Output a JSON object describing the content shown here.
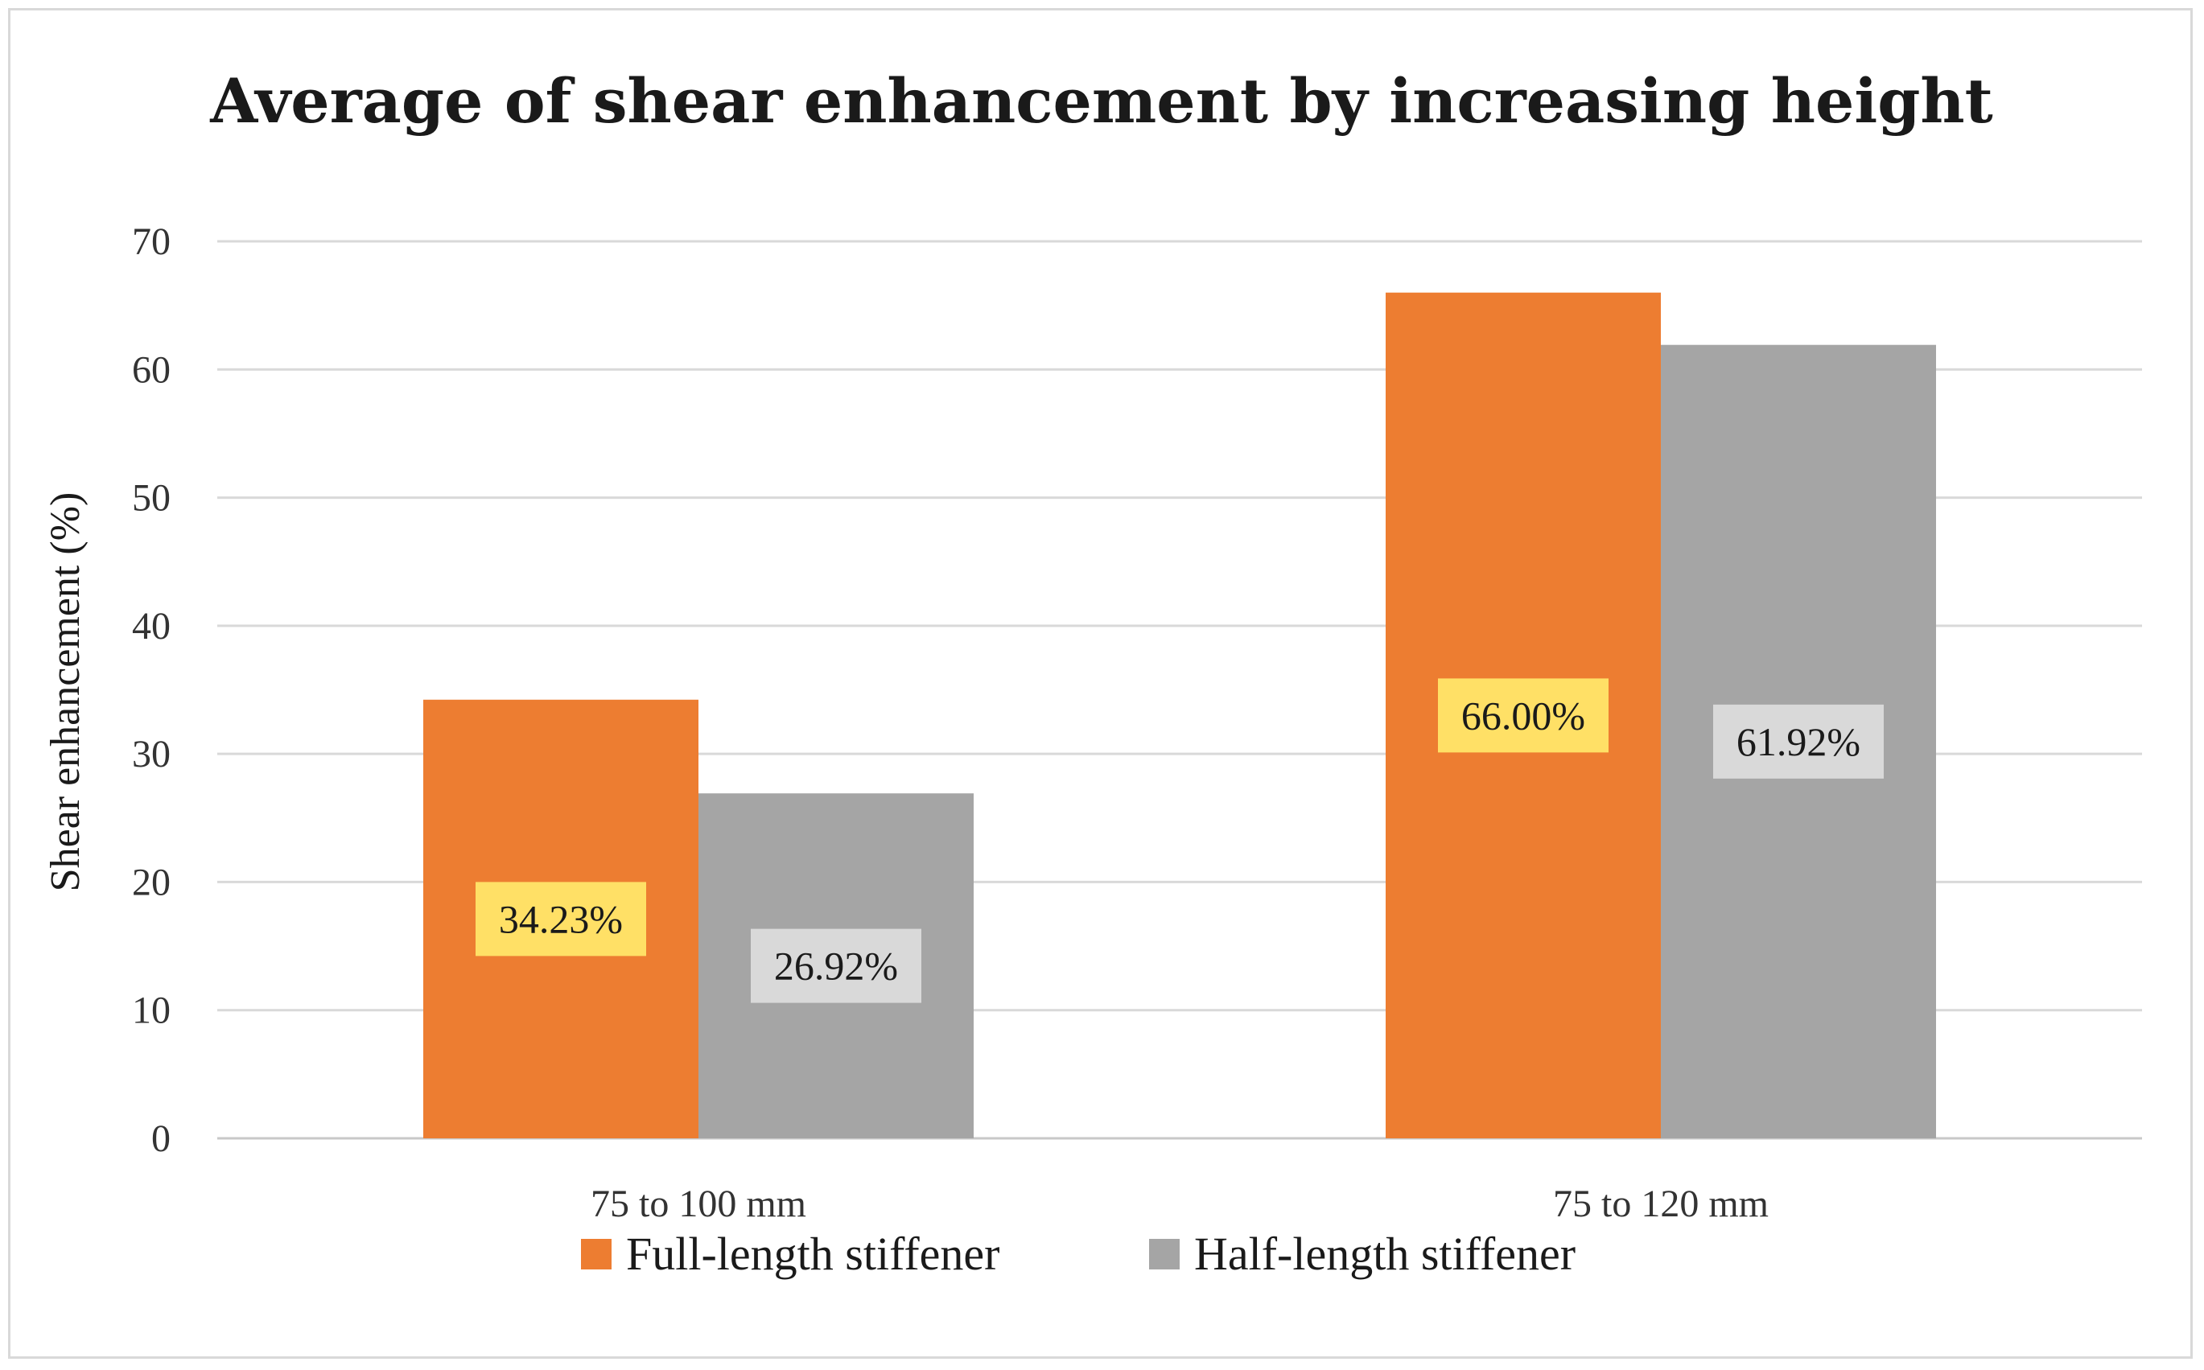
{
  "chart_data": {
    "type": "bar",
    "title": "Average of shear enhancement by increasing height",
    "xlabel": "",
    "ylabel": "Shear enhancement (%)",
    "ylim": [
      0,
      70
    ],
    "yticks": [
      0,
      10,
      20,
      30,
      40,
      50,
      60,
      70
    ],
    "grid": true,
    "legend_position": "bottom",
    "categories": [
      "75 to 100 mm",
      "75 to 120 mm"
    ],
    "series": [
      {
        "name": "Full-length stiffener",
        "color": "#ed7d31",
        "label_bg": "#ffe066",
        "values": [
          34.23,
          66.0
        ],
        "data_labels": [
          "34.23%",
          "66.00%"
        ]
      },
      {
        "name": "Half-length stiffener",
        "color": "#a5a5a5",
        "label_bg": "#d9d9d9",
        "values": [
          26.92,
          61.92
        ],
        "data_labels": [
          "26.92%",
          "61.92%"
        ]
      }
    ]
  }
}
